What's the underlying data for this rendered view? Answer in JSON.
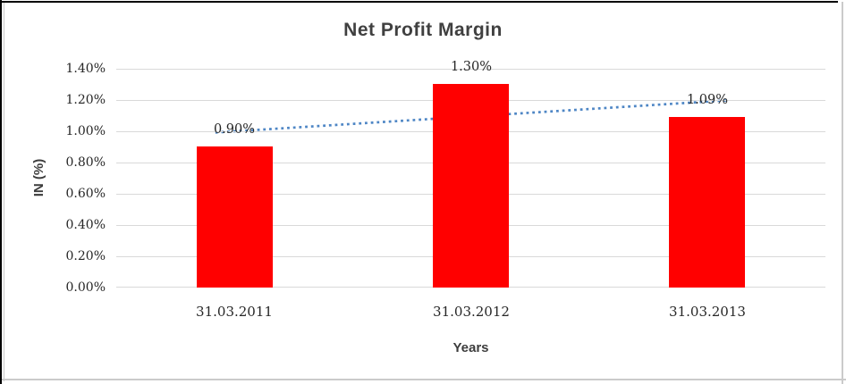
{
  "chart_data": {
    "type": "bar",
    "title": "Net Profit Margin",
    "categories": [
      "31.03.2011",
      "31.03.2012",
      "31.03.2013"
    ],
    "values": [
      0.9,
      1.3,
      1.09
    ],
    "data_labels": [
      "0.90%",
      "1.30%",
      "1.09%"
    ],
    "xlabel": "Years",
    "ylabel": "IN (%)",
    "ylim": [
      0,
      1.4
    ],
    "yticks": [
      "0.00%",
      "0.20%",
      "0.40%",
      "0.60%",
      "0.80%",
      "1.00%",
      "1.20%",
      "1.40%"
    ],
    "grid": true,
    "legend": false,
    "trendline": {
      "type": "linear",
      "style": "dotted",
      "start_value": 1.0,
      "end_value": 1.19
    },
    "colors": {
      "bar": "#FF0000",
      "gridline": "#D9D9D9",
      "trendline": "#4E86C5",
      "title_text": "#404040",
      "axis_title_text": "#3D3D3D",
      "tick_text": "#262626",
      "frame_black": "#000000",
      "frame_gray": "#CBCBCB"
    }
  }
}
